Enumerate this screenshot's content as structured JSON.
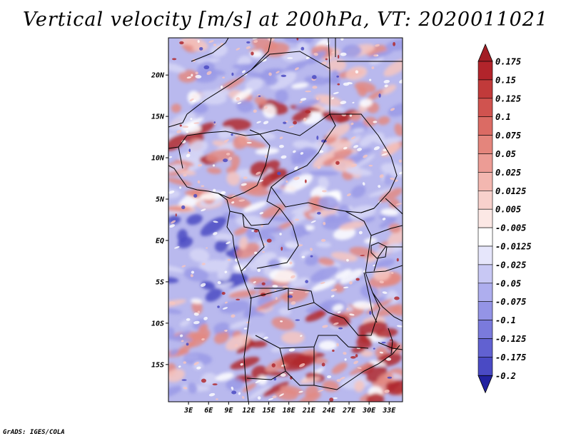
{
  "title": "Vertical velocity [m/s] at 200hPa, VT: 2020011021",
  "footer": "GrADS: IGES/COLA",
  "map": {
    "lat_range": [
      -19.5,
      24.5
    ],
    "lon_range": [
      0,
      35
    ],
    "lat_ticks": [
      {
        "value": 20,
        "label": "20N"
      },
      {
        "value": 15,
        "label": "15N"
      },
      {
        "value": 10,
        "label": "10N"
      },
      {
        "value": 5,
        "label": "5N"
      },
      {
        "value": 0,
        "label": "EQ"
      },
      {
        "value": -5,
        "label": "5S"
      },
      {
        "value": -10,
        "label": "10S"
      },
      {
        "value": -15,
        "label": "15S"
      }
    ],
    "lon_ticks": [
      {
        "value": 3,
        "label": "3E"
      },
      {
        "value": 6,
        "label": "6E"
      },
      {
        "value": 9,
        "label": "9E"
      },
      {
        "value": 12,
        "label": "12E"
      },
      {
        "value": 15,
        "label": "15E"
      },
      {
        "value": 18,
        "label": "18E"
      },
      {
        "value": 21,
        "label": "21E"
      },
      {
        "value": 24,
        "label": "24E"
      },
      {
        "value": 27,
        "label": "27E"
      },
      {
        "value": 30,
        "label": "30E"
      },
      {
        "value": 33,
        "label": "33E"
      }
    ]
  },
  "colorbar": {
    "levels": [
      {
        "label": "0.175",
        "color": "#b2242b"
      },
      {
        "label": "0.15",
        "color": "#c13a3a"
      },
      {
        "label": "0.125",
        "color": "#d0534f"
      },
      {
        "label": "0.1",
        "color": "#db6b64"
      },
      {
        "label": "0.075",
        "color": "#e4857c"
      },
      {
        "label": "0.05",
        "color": "#ec9c95"
      },
      {
        "label": "0.025",
        "color": "#f3b7b0"
      },
      {
        "label": "0.0125",
        "color": "#f8d1cc"
      },
      {
        "label": "0.005",
        "color": "#fce8e5"
      },
      {
        "label": "-0.005",
        "color": "#ffffff"
      },
      {
        "label": "-0.0125",
        "color": "#e6e6fb"
      },
      {
        "label": "-0.025",
        "color": "#c8c8f4"
      },
      {
        "label": "-0.05",
        "color": "#aeaeee"
      },
      {
        "label": "-0.075",
        "color": "#9494e6"
      },
      {
        "label": "-0.1",
        "color": "#7a7adc"
      },
      {
        "label": "-0.125",
        "color": "#6161d1"
      },
      {
        "label": "-0.175",
        "color": "#4a4ac4"
      },
      {
        "label": "-0.2",
        "color": "#3131b3"
      }
    ],
    "top_color": "#a31e25",
    "bottom_color": "#2222a0"
  },
  "field_colors": {
    "strong_down": "#b02a2f",
    "down": "#e38a82",
    "weak_down": "#f6c6c0",
    "neutral": "#ffffff",
    "weak_up": "#d6d6f6",
    "up": "#9a9ae6",
    "strong_up": "#4b4bc2"
  }
}
